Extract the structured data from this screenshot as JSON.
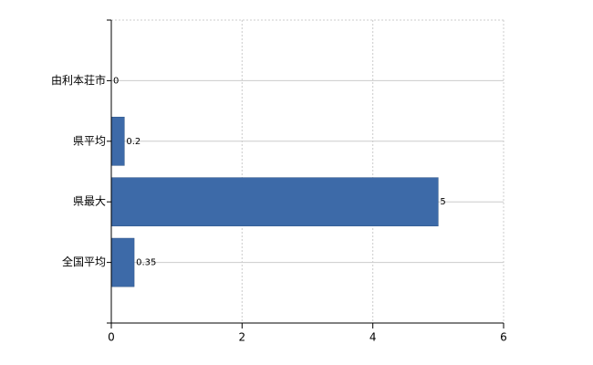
{
  "chart_data": {
    "type": "bar",
    "orientation": "horizontal",
    "categories": [
      "由利本荘市",
      "県平均",
      "県最大",
      "全国平均"
    ],
    "values": [
      0,
      0.2,
      5,
      0.35
    ],
    "color": "#3d6aa8",
    "xlim": [
      0,
      6
    ],
    "xticks": [
      0,
      2,
      4,
      6
    ],
    "grid": true
  }
}
